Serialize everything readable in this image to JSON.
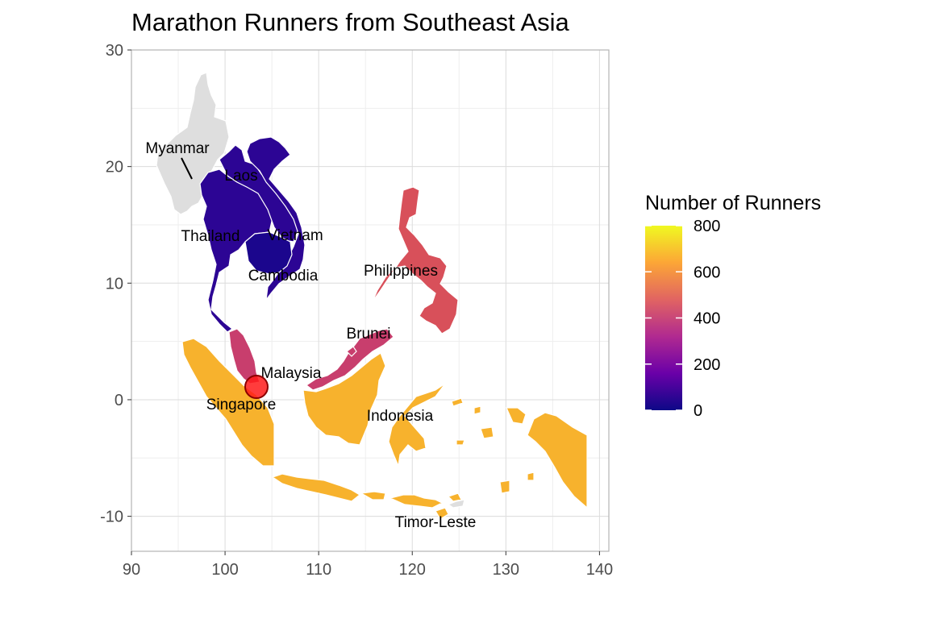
{
  "chart_data": {
    "type": "map",
    "title": "Marathon Runners from Southeast Asia",
    "xlim": [
      90,
      141
    ],
    "ylim": [
      -13,
      30
    ],
    "x_ticks": [
      90,
      100,
      110,
      120,
      130,
      140
    ],
    "y_ticks": [
      -10,
      0,
      10,
      20,
      30
    ],
    "x_tick_labels": [
      "90",
      "100",
      "110",
      "120",
      "130",
      "140"
    ],
    "y_tick_labels": [
      "-10",
      "0",
      "10",
      "20",
      "30"
    ],
    "grid": true,
    "legend": {
      "title": "Number of Runners",
      "placement": "right",
      "min": 0,
      "max": 800,
      "ticks": [
        0,
        200,
        400,
        600,
        800
      ],
      "tick_labels": [
        "0",
        "200",
        "400",
        "600",
        "800"
      ],
      "colormap": "plasma",
      "colors": [
        "#0d0887",
        "#6a00a8",
        "#b12a90",
        "#e16462",
        "#fca636",
        "#f0f921"
      ]
    },
    "no_data_color": "#dedede",
    "countries": [
      {
        "name": "Myanmar",
        "runners": null,
        "color": "#dedede",
        "label": "Myanmar",
        "label_lon": 94.0,
        "label_lat": 21.0
      },
      {
        "name": "Laos",
        "runners": 60,
        "color": "#2c0594",
        "label": "Laos",
        "label_lon": 102.2,
        "label_lat": 19.0
      },
      {
        "name": "Thailand",
        "runners": 60,
        "color": "#2c0594",
        "label": "Thailand",
        "label_lon": 99.0,
        "label_lat": 14.5
      },
      {
        "name": "Vietnam",
        "runners": 60,
        "color": "#2c0594",
        "label": "Vietnam",
        "label_lon": 108.2,
        "label_lat": 14.6
      },
      {
        "name": "Cambodia",
        "runners": 30,
        "color": "#1b068d",
        "label": "Cambodia",
        "label_lon": 104.8,
        "label_lat": 10.9
      },
      {
        "name": "Philippines",
        "runners": 480,
        "color": "#d8505a",
        "label": "Philippines",
        "label_lon": 120.0,
        "label_lat": 11.3
      },
      {
        "name": "Brunei",
        "runners": 420,
        "color": "#c83e6d",
        "label": "Brunei",
        "label_lon": 114.5,
        "label_lat": 5.6
      },
      {
        "name": "Malaysia",
        "runners": 420,
        "color": "#c83e6d",
        "label": "Malaysia",
        "label_lon": 107.7,
        "label_lat": 2.5
      },
      {
        "name": "Singapore",
        "runners": 420,
        "color": "#ff0000",
        "label": "Singapore",
        "label_lon": 103.8,
        "label_lat": -0.1
      },
      {
        "name": "Indonesia",
        "runners": 700,
        "color": "#f7b22d",
        "label": "Indonesia",
        "label_lon": 119.2,
        "label_lat": -1.2
      },
      {
        "name": "Timor-Leste",
        "runners": null,
        "color": "#dedede",
        "label": "Timor-Leste",
        "label_lon": 123.5,
        "label_lat": -10.3
      }
    ],
    "marker": {
      "name": "Singapore",
      "lon": 103.8,
      "lat": 1.35,
      "color": "#ff1a1a"
    }
  }
}
